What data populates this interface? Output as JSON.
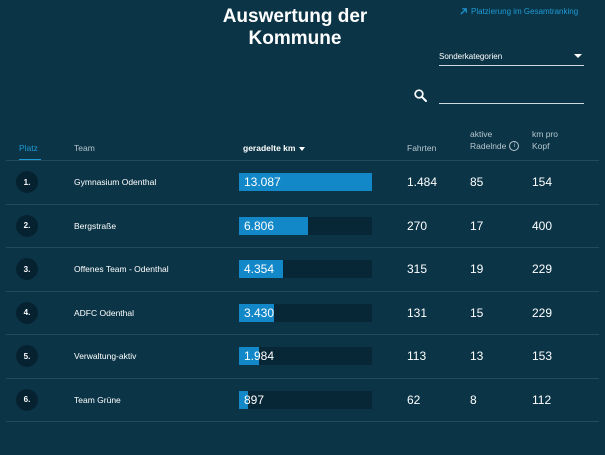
{
  "header": {
    "title_line1": "Auswertung der",
    "title_line2": "Kommune",
    "ranking_link_label": "Platzierung im Gesamtranking",
    "link_icon": "arrow-up-right-icon"
  },
  "filters": {
    "category_selected": "Sonderkategorien",
    "search_placeholder": "",
    "search_value": ""
  },
  "table": {
    "columns": {
      "rank": "Platz",
      "team": "Team",
      "km": "geradelte km",
      "rides": "Fahrten",
      "riders_line1": "aktive",
      "riders_line2": "Radelnde",
      "perhead_line1": "km pro",
      "perhead_line2": "Kopf"
    },
    "sorted_by": "km",
    "rows": [
      {
        "rank": "1.",
        "team": "Gymnasium Odenthal",
        "km": "13.087",
        "km_value": 13087,
        "rides": "1.484",
        "riders": "85",
        "perhead": "154"
      },
      {
        "rank": "2.",
        "team": "Bergstraße",
        "km": "6.806",
        "km_value": 6806,
        "rides": "270",
        "riders": "17",
        "perhead": "400"
      },
      {
        "rank": "3.",
        "team": "Offenes Team - Odenthal",
        "km": "4.354",
        "km_value": 4354,
        "rides": "315",
        "riders": "19",
        "perhead": "229"
      },
      {
        "rank": "4.",
        "team": "ADFC Odenthal",
        "km": "3.430",
        "km_value": 3430,
        "rides": "131",
        "riders": "15",
        "perhead": "229"
      },
      {
        "rank": "5.",
        "team": "Verwaltung-aktiv",
        "km": "1.984",
        "km_value": 1984,
        "rides": "113",
        "riders": "13",
        "perhead": "153"
      },
      {
        "rank": "6.",
        "team": "Team Grüne",
        "km": "897",
        "km_value": 897,
        "rides": "62",
        "riders": "8",
        "perhead": "112"
      }
    ]
  },
  "colors": {
    "background": "#0b3547",
    "accent": "#1e9ad6",
    "bar_fill": "#1388c9",
    "bar_track": "#072736"
  }
}
